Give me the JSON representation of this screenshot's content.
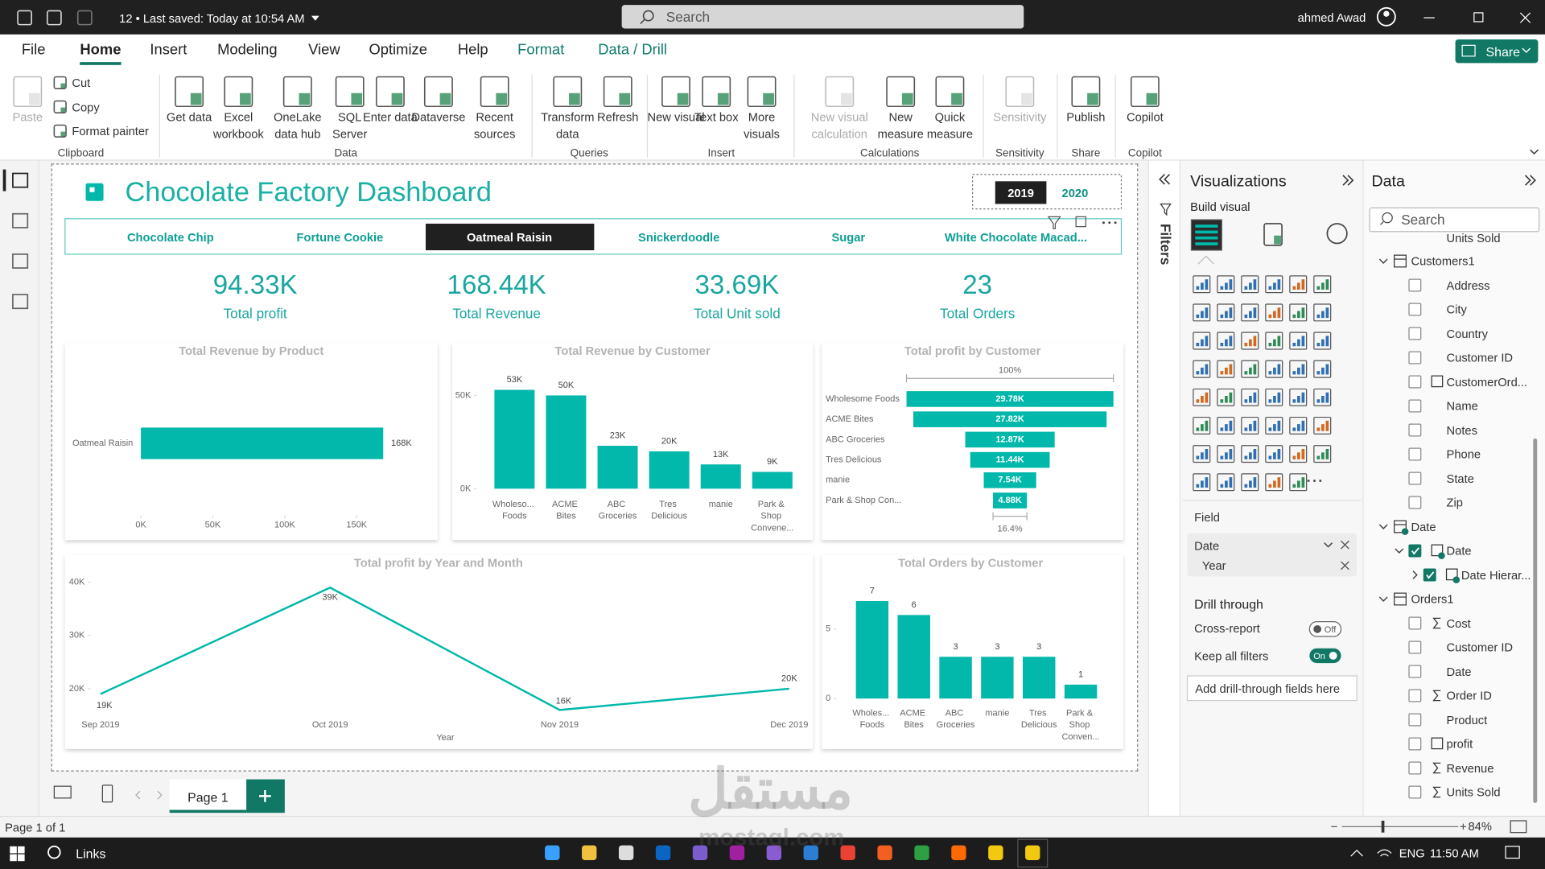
{
  "titlebar": {
    "status": "12 • Last saved: Today at 10:54 AM",
    "search": "Search",
    "user": "ahmed Awad"
  },
  "menu": {
    "tabs": [
      "File",
      "Home",
      "Insert",
      "Modeling",
      "View",
      "Optimize",
      "Help",
      "Format",
      "Data / Drill"
    ],
    "active": 1,
    "share": "Share"
  },
  "ribbon": {
    "groups": [
      {
        "name": "Clipboard",
        "items": [
          "Paste"
        ],
        "disabled": [
          0
        ],
        "small": [
          "Cut",
          "Copy",
          "Format painter"
        ]
      },
      {
        "name": "Data",
        "items": [
          "Get data",
          "Excel workbook",
          "OneLake data hub",
          "SQL Server",
          "Enter data",
          "Dataverse",
          "Recent sources"
        ]
      },
      {
        "name": "Queries",
        "items": [
          "Transform data",
          "Refresh"
        ]
      },
      {
        "name": "Insert",
        "items": [
          "New visual",
          "Text box",
          "More visuals"
        ]
      },
      {
        "name": "Calculations",
        "items": [
          "New visual calculation",
          "New measure",
          "Quick measure"
        ],
        "disabled": [
          0
        ]
      },
      {
        "name": "Sensitivity",
        "items": [
          "Sensitivity"
        ],
        "disabled": [
          0
        ]
      },
      {
        "name": "Share",
        "items": [
          "Publish"
        ]
      },
      {
        "name": "Copilot",
        "items": [
          "Copilot"
        ]
      }
    ]
  },
  "report": {
    "title": "Chocolate Factory Dashboard",
    "years": [
      "2019",
      "2020"
    ],
    "selected_year": 0,
    "products": [
      "Chocolate Chip",
      "Fortune Cookie",
      "Oatmeal Raisin",
      "Snickerdoodle",
      "Sugar",
      "White Chocolate Macad..."
    ],
    "selected_product": 2,
    "kpis": [
      {
        "value": "94.33K",
        "label": "Total profit"
      },
      {
        "value": "168.44K",
        "label": "Total Revenue"
      },
      {
        "value": "33.69K",
        "label": "Total Unit sold"
      },
      {
        "value": "23",
        "label": "Total Orders"
      }
    ]
  },
  "chart_data": [
    {
      "type": "bar",
      "title": "Total Revenue by Product",
      "categories": [
        "Oatmeal Raisin"
      ],
      "values": [
        168440
      ],
      "value_labels": [
        "168K"
      ],
      "color": "#01b8aa",
      "xlim": [
        0,
        175000
      ],
      "xticks": [
        {
          "value": 0,
          "label": "0K"
        },
        {
          "value": 50000,
          "label": "50K"
        },
        {
          "value": 100000,
          "label": "100K"
        },
        {
          "value": 150000,
          "label": "150K"
        }
      ]
    },
    {
      "type": "column",
      "title": "Total Revenue by Customer",
      "categories": [
        "Wholeso... Foods",
        "ACME Bites",
        "ABC Groceries",
        "Tres Delicious",
        "manie",
        "Park & Shop Convene..."
      ],
      "values": [
        53000,
        50000,
        23000,
        20000,
        13000,
        9000
      ],
      "value_labels": [
        "53K",
        "50K",
        "23K",
        "20K",
        "13K",
        "9K"
      ],
      "color": "#01b8aa",
      "ylim": [
        0,
        56000
      ],
      "yticks": [
        {
          "value": 0,
          "label": "0K"
        },
        {
          "value": 50000,
          "label": "50K"
        }
      ]
    },
    {
      "type": "funnel",
      "title": "Total profit by Customer",
      "categories": [
        "Wholesome Foods",
        "ACME Bites",
        "ABC Groceries",
        "Tres Delicious",
        "manie",
        "Park & Shop Con..."
      ],
      "values": [
        29780,
        27820,
        12870,
        11440,
        7540,
        4880
      ],
      "value_labels": [
        "29.78K",
        "27.82K",
        "12.87K",
        "11.44K",
        "7.54K",
        "4.88K"
      ],
      "color": "#01b8aa",
      "top_label": "100%",
      "bottom_label": "16.4%"
    },
    {
      "type": "line",
      "title": "Total profit by Year and Month",
      "categories": [
        "Sep 2019",
        "Oct 2019",
        "Nov 2019",
        "Dec 2019"
      ],
      "values": [
        19000,
        39000,
        16000,
        20000
      ],
      "value_labels": [
        "19K",
        "39K",
        "16K",
        "20K"
      ],
      "color": "#01b8aa",
      "x_label": "Year",
      "ylim": [
        15000,
        41000
      ],
      "yticks": [
        {
          "value": 20000,
          "label": "20K"
        },
        {
          "value": 30000,
          "label": "30K"
        },
        {
          "value": 40000,
          "label": "40K"
        }
      ]
    },
    {
      "type": "column",
      "title": "Total Orders by Customer",
      "categories": [
        "Wholes... Foods",
        "ACME Bites",
        "ABC Groceries",
        "manie",
        "Tres Delicious",
        "Park & Shop Conven..."
      ],
      "values": [
        7,
        6,
        3,
        3,
        3,
        1
      ],
      "color": "#01b8aa",
      "ylim": [
        0,
        7.5
      ],
      "yticks": [
        0,
        5
      ]
    }
  ],
  "filters": "Filters",
  "visualizations": {
    "title": "Visualizations",
    "build": "Build visual",
    "field_label": "Field",
    "field_items": [
      "Date",
      "Year"
    ],
    "drill": "Drill through",
    "cross_report": "Cross-report",
    "cross_state": "Off",
    "keep_filters": "Keep all filters",
    "keep_state": "On",
    "add_drill": "Add drill-through fields here"
  },
  "data_pane": {
    "title": "Data",
    "search": "Search",
    "clipped": "Units Sold",
    "tables": [
      {
        "name": "Customers1",
        "fields": [
          {
            "name": "Address"
          },
          {
            "name": "City"
          },
          {
            "name": "Country"
          },
          {
            "name": "Customer ID"
          },
          {
            "name": "CustomerOrd...",
            "calc": true
          },
          {
            "name": "Name"
          },
          {
            "name": "Notes"
          },
          {
            "name": "Phone"
          },
          {
            "name": "State"
          },
          {
            "name": "Zip"
          }
        ]
      },
      {
        "name": "Date",
        "checked": true,
        "fields": [
          {
            "name": "Date",
            "checked": true,
            "children": [
              {
                "name": "Date Hierar...",
                "checked": true
              }
            ]
          }
        ]
      },
      {
        "name": "Orders1",
        "fields": [
          {
            "name": "Cost",
            "sigma": true
          },
          {
            "name": "Customer ID"
          },
          {
            "name": "Date"
          },
          {
            "name": "Order ID",
            "sigma": true
          },
          {
            "name": "Product"
          },
          {
            "name": "profit",
            "calc": true
          },
          {
            "name": "Revenue",
            "sigma": true
          },
          {
            "name": "Units Sold",
            "sigma": true
          }
        ]
      }
    ]
  },
  "pages": {
    "tabs": [
      "Page 1"
    ],
    "status": "Page 1 of 1",
    "zoom": "84%"
  },
  "taskbar": {
    "search": "Links",
    "lang": "ENG",
    "time": "11:50 AM"
  },
  "watermark": {
    "arabic": "مستقل",
    "latin": "mostaql.com"
  }
}
